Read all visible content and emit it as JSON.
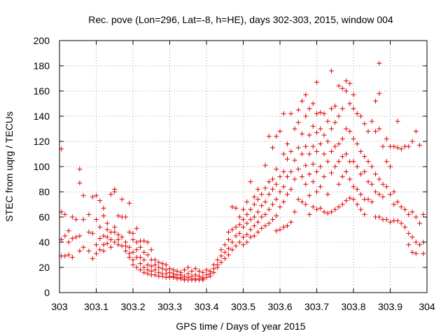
{
  "chart_data": {
    "type": "scatter",
    "title": "Rec. pove (Lon=296, Lat=-8, h=HE), days 302-303, 2015, window 004",
    "xlabel": "GPS time / Days of year 2015",
    "ylabel": "STEC from uqrg / TECUs",
    "xlim": [
      303,
      304
    ],
    "ylim": [
      0,
      200
    ],
    "xticks": [
      "303",
      "303.1",
      "303.2",
      "303.3",
      "303.4",
      "303.5",
      "303.6",
      "303.7",
      "303.8",
      "303.9",
      "304"
    ],
    "yticks": [
      "0",
      "20",
      "40",
      "60",
      "80",
      "100",
      "120",
      "140",
      "160",
      "180",
      "200"
    ],
    "grid": true,
    "marker": "+",
    "color": "#e00000",
    "points": [
      [
        303.005,
        114
      ],
      [
        303.005,
        64
      ],
      [
        303.005,
        42
      ],
      [
        303.005,
        29
      ],
      [
        303.015,
        62
      ],
      [
        303.015,
        45
      ],
      [
        303.015,
        29
      ],
      [
        303.025,
        49
      ],
      [
        303.025,
        40
      ],
      [
        303.025,
        30
      ],
      [
        303.035,
        60
      ],
      [
        303.035,
        43
      ],
      [
        303.035,
        28
      ],
      [
        303.045,
        58
      ],
      [
        303.045,
        44
      ],
      [
        303.055,
        98
      ],
      [
        303.055,
        87
      ],
      [
        303.055,
        45
      ],
      [
        303.055,
        33
      ],
      [
        303.065,
        77
      ],
      [
        303.065,
        58
      ],
      [
        303.065,
        36
      ],
      [
        303.08,
        62
      ],
      [
        303.08,
        48
      ],
      [
        303.08,
        33
      ],
      [
        303.09,
        76
      ],
      [
        303.09,
        47
      ],
      [
        303.09,
        27
      ],
      [
        303.1,
        77
      ],
      [
        303.1,
        58
      ],
      [
        303.1,
        38
      ],
      [
        303.1,
        31
      ],
      [
        303.11,
        73
      ],
      [
        303.11,
        52
      ],
      [
        303.11,
        43
      ],
      [
        303.11,
        34
      ],
      [
        303.12,
        67
      ],
      [
        303.12,
        61
      ],
      [
        303.12,
        45
      ],
      [
        303.12,
        38
      ],
      [
        303.12,
        33
      ],
      [
        303.13,
        55
      ],
      [
        303.13,
        50
      ],
      [
        303.13,
        44
      ],
      [
        303.13,
        39
      ],
      [
        303.14,
        78
      ],
      [
        303.14,
        48
      ],
      [
        303.14,
        42
      ],
      [
        303.14,
        36
      ],
      [
        303.15,
        80
      ],
      [
        303.15,
        82
      ],
      [
        303.15,
        52
      ],
      [
        303.15,
        48
      ],
      [
        303.15,
        40
      ],
      [
        303.16,
        61
      ],
      [
        303.16,
        46
      ],
      [
        303.16,
        42
      ],
      [
        303.16,
        38
      ],
      [
        303.17,
        74
      ],
      [
        303.17,
        60
      ],
      [
        303.17,
        44
      ],
      [
        303.17,
        37
      ],
      [
        303.18,
        60
      ],
      [
        303.18,
        40
      ],
      [
        303.18,
        37
      ],
      [
        303.18,
        33
      ],
      [
        303.19,
        71
      ],
      [
        303.19,
        48
      ],
      [
        303.19,
        36
      ],
      [
        303.19,
        31
      ],
      [
        303.19,
        28
      ],
      [
        303.2,
        47
      ],
      [
        303.2,
        42
      ],
      [
        303.2,
        32
      ],
      [
        303.2,
        26
      ],
      [
        303.2,
        22
      ],
      [
        303.21,
        51
      ],
      [
        303.21,
        40
      ],
      [
        303.21,
        34
      ],
      [
        303.21,
        28
      ],
      [
        303.21,
        20
      ],
      [
        303.22,
        41
      ],
      [
        303.22,
        36
      ],
      [
        303.22,
        28
      ],
      [
        303.22,
        23
      ],
      [
        303.22,
        18
      ],
      [
        303.23,
        41
      ],
      [
        303.23,
        32
      ],
      [
        303.23,
        26
      ],
      [
        303.23,
        20
      ],
      [
        303.23,
        16
      ],
      [
        303.24,
        40
      ],
      [
        303.24,
        30
      ],
      [
        303.24,
        22
      ],
      [
        303.24,
        18
      ],
      [
        303.24,
        15
      ],
      [
        303.25,
        34
      ],
      [
        303.25,
        26
      ],
      [
        303.25,
        21
      ],
      [
        303.25,
        17
      ],
      [
        303.25,
        14
      ],
      [
        303.26,
        26
      ],
      [
        303.26,
        22
      ],
      [
        303.26,
        18
      ],
      [
        303.26,
        14
      ],
      [
        303.27,
        24
      ],
      [
        303.27,
        20
      ],
      [
        303.27,
        16
      ],
      [
        303.27,
        13
      ],
      [
        303.28,
        23
      ],
      [
        303.28,
        19
      ],
      [
        303.28,
        15
      ],
      [
        303.28,
        13
      ],
      [
        303.29,
        22
      ],
      [
        303.29,
        18
      ],
      [
        303.29,
        15
      ],
      [
        303.29,
        12
      ],
      [
        303.3,
        19
      ],
      [
        303.3,
        16
      ],
      [
        303.3,
        13
      ],
      [
        303.3,
        12
      ],
      [
        303.31,
        18
      ],
      [
        303.31,
        15
      ],
      [
        303.31,
        13
      ],
      [
        303.31,
        12
      ],
      [
        303.32,
        17
      ],
      [
        303.32,
        14
      ],
      [
        303.32,
        12
      ],
      [
        303.32,
        11
      ],
      [
        303.33,
        16
      ],
      [
        303.33,
        14
      ],
      [
        303.33,
        12
      ],
      [
        303.33,
        11
      ],
      [
        303.34,
        18
      ],
      [
        303.34,
        13
      ],
      [
        303.34,
        11
      ],
      [
        303.34,
        10
      ],
      [
        303.35,
        20
      ],
      [
        303.35,
        15
      ],
      [
        303.35,
        12
      ],
      [
        303.35,
        10
      ],
      [
        303.36,
        17
      ],
      [
        303.36,
        13
      ],
      [
        303.36,
        11
      ],
      [
        303.36,
        10
      ],
      [
        303.37,
        19
      ],
      [
        303.37,
        14
      ],
      [
        303.37,
        11
      ],
      [
        303.37,
        10
      ],
      [
        303.38,
        17
      ],
      [
        303.38,
        13
      ],
      [
        303.38,
        11
      ],
      [
        303.38,
        10
      ],
      [
        303.39,
        16
      ],
      [
        303.39,
        12
      ],
      [
        303.39,
        11
      ],
      [
        303.39,
        10
      ],
      [
        303.4,
        18
      ],
      [
        303.4,
        14
      ],
      [
        303.4,
        12
      ],
      [
        303.41,
        17
      ],
      [
        303.41,
        15
      ],
      [
        303.41,
        13
      ],
      [
        303.42,
        22
      ],
      [
        303.42,
        19
      ],
      [
        303.42,
        16
      ],
      [
        303.43,
        26
      ],
      [
        303.43,
        22
      ],
      [
        303.43,
        20
      ],
      [
        303.44,
        34
      ],
      [
        303.44,
        29
      ],
      [
        303.44,
        24
      ],
      [
        303.45,
        38
      ],
      [
        303.45,
        32
      ],
      [
        303.45,
        27
      ],
      [
        303.46,
        48
      ],
      [
        303.46,
        42
      ],
      [
        303.46,
        35
      ],
      [
        303.46,
        30
      ],
      [
        303.47,
        68
      ],
      [
        303.47,
        50
      ],
      [
        303.47,
        40
      ],
      [
        303.47,
        34
      ],
      [
        303.48,
        67
      ],
      [
        303.48,
        52
      ],
      [
        303.48,
        45
      ],
      [
        303.48,
        37
      ],
      [
        303.49,
        60
      ],
      [
        303.49,
        54
      ],
      [
        303.49,
        47
      ],
      [
        303.49,
        40
      ],
      [
        303.5,
        66
      ],
      [
        303.5,
        58
      ],
      [
        303.5,
        52
      ],
      [
        303.5,
        44
      ],
      [
        303.5,
        38
      ],
      [
        303.51,
        72
      ],
      [
        303.51,
        62
      ],
      [
        303.51,
        55
      ],
      [
        303.51,
        46
      ],
      [
        303.51,
        40
      ],
      [
        303.52,
        88
      ],
      [
        303.52,
        66
      ],
      [
        303.52,
        58
      ],
      [
        303.52,
        50
      ],
      [
        303.52,
        44
      ],
      [
        303.53,
        76
      ],
      [
        303.53,
        70
      ],
      [
        303.53,
        60
      ],
      [
        303.53,
        53
      ],
      [
        303.53,
        45
      ],
      [
        303.54,
        82
      ],
      [
        303.54,
        74
      ],
      [
        303.54,
        64
      ],
      [
        303.54,
        56
      ],
      [
        303.54,
        48
      ],
      [
        303.55,
        78
      ],
      [
        303.55,
        69
      ],
      [
        303.55,
        60
      ],
      [
        303.55,
        51
      ],
      [
        303.56,
        101
      ],
      [
        303.56,
        83
      ],
      [
        303.56,
        72
      ],
      [
        303.56,
        62
      ],
      [
        303.56,
        53
      ],
      [
        303.57,
        124
      ],
      [
        303.57,
        88
      ],
      [
        303.57,
        78
      ],
      [
        303.57,
        66
      ],
      [
        303.57,
        55
      ],
      [
        303.58,
        115
      ],
      [
        303.58,
        90
      ],
      [
        303.58,
        82
      ],
      [
        303.58,
        70
      ],
      [
        303.58,
        58
      ],
      [
        303.59,
        124
      ],
      [
        303.59,
        98
      ],
      [
        303.59,
        86
      ],
      [
        303.59,
        74
      ],
      [
        303.59,
        61
      ],
      [
        303.59,
        49
      ],
      [
        303.6,
        128
      ],
      [
        303.6,
        92
      ],
      [
        303.6,
        80
      ],
      [
        303.6,
        68
      ],
      [
        303.6,
        50
      ],
      [
        303.61,
        142
      ],
      [
        303.61,
        110
      ],
      [
        303.61,
        96
      ],
      [
        303.61,
        84
      ],
      [
        303.61,
        72
      ],
      [
        303.61,
        52
      ],
      [
        303.62,
        118
      ],
      [
        303.62,
        106
      ],
      [
        303.62,
        92
      ],
      [
        303.62,
        78
      ],
      [
        303.62,
        53
      ],
      [
        303.63,
        142
      ],
      [
        303.63,
        112
      ],
      [
        303.63,
        96
      ],
      [
        303.63,
        82
      ],
      [
        303.63,
        56
      ],
      [
        303.64,
        130
      ],
      [
        303.64,
        105
      ],
      [
        303.64,
        90
      ],
      [
        303.64,
        64
      ],
      [
        303.65,
        145
      ],
      [
        303.65,
        135
      ],
      [
        303.65,
        115
      ],
      [
        303.65,
        98
      ],
      [
        303.65,
        74
      ],
      [
        303.66,
        152
      ],
      [
        303.66,
        126
      ],
      [
        303.66,
        110
      ],
      [
        303.66,
        92
      ],
      [
        303.66,
        72
      ],
      [
        303.67,
        157
      ],
      [
        303.67,
        140
      ],
      [
        303.67,
        116
      ],
      [
        303.67,
        101
      ],
      [
        303.67,
        86
      ],
      [
        303.67,
        70
      ],
      [
        303.68,
        146
      ],
      [
        303.68,
        125
      ],
      [
        303.68,
        110
      ],
      [
        303.68,
        94
      ],
      [
        303.68,
        77
      ],
      [
        303.68,
        62
      ],
      [
        303.69,
        150
      ],
      [
        303.69,
        132
      ],
      [
        303.69,
        116
      ],
      [
        303.69,
        102
      ],
      [
        303.69,
        88
      ],
      [
        303.69,
        68
      ],
      [
        303.7,
        167
      ],
      [
        303.7,
        142
      ],
      [
        303.7,
        127
      ],
      [
        303.7,
        112
      ],
      [
        303.7,
        96
      ],
      [
        303.7,
        80
      ],
      [
        303.7,
        66
      ],
      [
        303.71,
        143
      ],
      [
        303.71,
        130
      ],
      [
        303.71,
        118
      ],
      [
        303.71,
        100
      ],
      [
        303.71,
        84
      ],
      [
        303.71,
        67
      ],
      [
        303.72,
        142
      ],
      [
        303.72,
        125
      ],
      [
        303.72,
        110
      ],
      [
        303.72,
        92
      ],
      [
        303.72,
        64
      ],
      [
        303.73,
        136
      ],
      [
        303.73,
        120
      ],
      [
        303.73,
        104
      ],
      [
        303.73,
        78
      ],
      [
        303.73,
        63
      ],
      [
        303.74,
        176
      ],
      [
        303.74,
        146
      ],
      [
        303.74,
        130
      ],
      [
        303.74,
        112
      ],
      [
        303.74,
        95
      ],
      [
        303.74,
        64
      ],
      [
        303.75,
        148
      ],
      [
        303.75,
        135
      ],
      [
        303.75,
        116
      ],
      [
        303.75,
        100
      ],
      [
        303.75,
        66
      ],
      [
        303.76,
        164
      ],
      [
        303.76,
        140
      ],
      [
        303.76,
        118
      ],
      [
        303.76,
        104
      ],
      [
        303.76,
        86
      ],
      [
        303.76,
        68
      ],
      [
        303.77,
        162
      ],
      [
        303.77,
        146
      ],
      [
        303.77,
        122
      ],
      [
        303.77,
        108
      ],
      [
        303.77,
        92
      ],
      [
        303.77,
        70
      ],
      [
        303.78,
        168
      ],
      [
        303.78,
        160
      ],
      [
        303.78,
        130
      ],
      [
        303.78,
        110
      ],
      [
        303.78,
        96
      ],
      [
        303.78,
        73
      ],
      [
        303.79,
        166
      ],
      [
        303.79,
        150
      ],
      [
        303.79,
        128
      ],
      [
        303.79,
        104
      ],
      [
        303.79,
        90
      ],
      [
        303.79,
        75
      ],
      [
        303.8,
        157
      ],
      [
        303.8,
        146
      ],
      [
        303.8,
        122
      ],
      [
        303.8,
        104
      ],
      [
        303.8,
        84
      ],
      [
        303.8,
        74
      ],
      [
        303.81,
        142
      ],
      [
        303.81,
        118
      ],
      [
        303.81,
        100
      ],
      [
        303.81,
        82
      ],
      [
        303.81,
        70
      ],
      [
        303.82,
        140
      ],
      [
        303.82,
        112
      ],
      [
        303.82,
        94
      ],
      [
        303.82,
        78
      ],
      [
        303.82,
        66
      ],
      [
        303.83,
        134
      ],
      [
        303.83,
        108
      ],
      [
        303.83,
        96
      ],
      [
        303.83,
        74
      ],
      [
        303.83,
        62
      ],
      [
        303.84,
        128
      ],
      [
        303.84,
        104
      ],
      [
        303.84,
        88
      ],
      [
        303.84,
        74
      ],
      [
        303.85,
        136
      ],
      [
        303.85,
        100
      ],
      [
        303.85,
        86
      ],
      [
        303.85,
        72
      ],
      [
        303.86,
        152
      ],
      [
        303.86,
        128
      ],
      [
        303.86,
        94
      ],
      [
        303.86,
        80
      ],
      [
        303.86,
        60
      ],
      [
        303.87,
        182
      ],
      [
        303.87,
        158
      ],
      [
        303.87,
        130
      ],
      [
        303.87,
        90
      ],
      [
        303.87,
        78
      ],
      [
        303.87,
        60
      ],
      [
        303.88,
        116
      ],
      [
        303.88,
        86
      ],
      [
        303.88,
        76
      ],
      [
        303.88,
        58
      ],
      [
        303.89,
        122
      ],
      [
        303.89,
        104
      ],
      [
        303.89,
        84
      ],
      [
        303.89,
        58
      ],
      [
        303.9,
        116
      ],
      [
        303.9,
        100
      ],
      [
        303.9,
        78
      ],
      [
        303.9,
        56
      ],
      [
        303.91,
        116
      ],
      [
        303.91,
        80
      ],
      [
        303.91,
        70
      ],
      [
        303.91,
        57
      ],
      [
        303.92,
        136
      ],
      [
        303.92,
        115
      ],
      [
        303.92,
        72
      ],
      [
        303.92,
        57
      ],
      [
        303.93,
        114
      ],
      [
        303.93,
        68
      ],
      [
        303.93,
        55
      ],
      [
        303.94,
        116
      ],
      [
        303.94,
        66
      ],
      [
        303.94,
        52
      ],
      [
        303.95,
        116
      ],
      [
        303.95,
        62
      ],
      [
        303.95,
        47
      ],
      [
        303.95,
        38
      ],
      [
        303.96,
        120
      ],
      [
        303.96,
        64
      ],
      [
        303.96,
        44
      ],
      [
        303.96,
        32
      ],
      [
        303.97,
        128
      ],
      [
        303.97,
        60
      ],
      [
        303.97,
        40
      ],
      [
        303.97,
        31
      ],
      [
        303.98,
        117
      ],
      [
        303.98,
        55
      ],
      [
        303.98,
        38
      ],
      [
        303.99,
        62
      ],
      [
        303.99,
        40
      ],
      [
        303.99,
        31
      ]
    ]
  }
}
